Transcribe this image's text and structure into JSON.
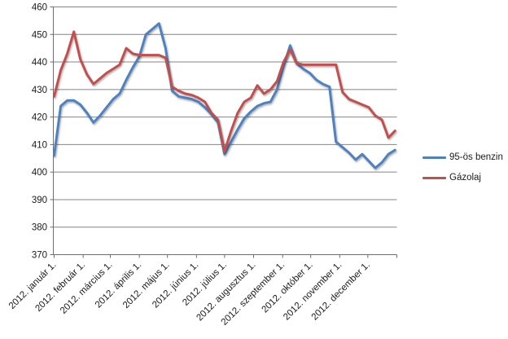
{
  "chart_data": {
    "type": "line",
    "title": "",
    "x_axis": {
      "tick_labels": [
        "2012. január 1.",
        "2012. február 1.",
        "2012. március 1.",
        "2012. április 1.",
        "2012. május 1.",
        "2012. június 1.",
        "2012. július 1.",
        "2012. augusztus 1.",
        "2012. szeptember 1.",
        "2012. október 1.",
        "2012. november 1.",
        "2012. december 1."
      ],
      "resolution": "weekly points across 2012"
    },
    "y_axis": {
      "min": 370,
      "max": 460,
      "step": 10,
      "tick_labels": [
        "370",
        "380",
        "390",
        "400",
        "410",
        "420",
        "430",
        "440",
        "450",
        "460"
      ]
    },
    "grid": true,
    "legend_position": "right",
    "series": [
      {
        "name": "95-ös benzin",
        "color": "#4F81BD",
        "values": [
          406,
          424,
          426,
          426,
          424.5,
          421.5,
          418,
          420.5,
          423.5,
          426.5,
          428.5,
          433.5,
          438,
          442,
          450,
          452,
          454,
          445,
          429.5,
          427.5,
          427,
          426.5,
          425.5,
          423.5,
          421,
          418,
          406.5,
          411,
          415.5,
          419.5,
          422,
          424,
          425,
          425.5,
          430,
          438.5,
          446,
          439.5,
          437.5,
          436,
          433.5,
          432,
          431,
          411,
          409,
          407,
          404.5,
          406.5,
          404,
          401.5,
          403.5,
          406.5,
          408
        ]
      },
      {
        "name": "Gázolaj",
        "color": "#C0504D",
        "values": [
          427.5,
          437,
          443,
          451,
          441,
          435.5,
          432,
          434,
          436,
          437.5,
          439,
          445,
          443,
          442.5,
          442.5,
          442.5,
          442.5,
          441.5,
          431,
          429.5,
          428.5,
          428,
          427,
          425.5,
          421.5,
          419,
          407.5,
          415,
          421.5,
          425.5,
          427,
          431.5,
          428.5,
          430,
          433,
          440,
          444.5,
          439.5,
          439,
          439,
          439,
          439,
          439,
          439,
          429,
          426.5,
          425.5,
          424.5,
          423.5,
          420.5,
          419,
          412.5,
          415
        ]
      }
    ]
  },
  "legend": {
    "items": [
      {
        "label": "95-ös benzin",
        "color": "#4F81BD"
      },
      {
        "label": "Gázolaj",
        "color": "#C0504D"
      }
    ]
  },
  "colors": {
    "background": "#FFFFFF",
    "gridline": "#848484",
    "axis": "#6e6e6e",
    "tick_text": "#1a1a1a"
  }
}
